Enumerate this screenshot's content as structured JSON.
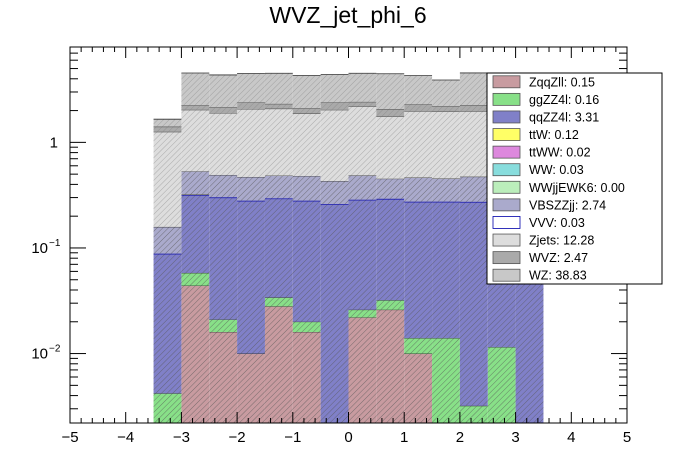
{
  "chart_data": {
    "type": "bar",
    "title": "WVZ_jet_phi_6",
    "xlabel": "",
    "ylabel": "",
    "xlim": [
      -5,
      5
    ],
    "ylim": [
      0.0022,
      8
    ],
    "log_y": true,
    "stacked": true,
    "grid": false,
    "legend_position": "top-right",
    "bin_edges": [
      -3.5,
      -3.0,
      -2.5,
      -2.0,
      -1.5,
      -1.0,
      -0.5,
      0.0,
      0.5,
      1.0,
      1.5,
      2.0,
      2.5,
      3.0,
      3.5
    ],
    "x_ticks": [
      -5,
      -4,
      -3,
      -2,
      -1,
      0,
      1,
      2,
      3,
      4,
      5
    ],
    "x_tick_labels": [
      "−5",
      "−4",
      "−3",
      "−2",
      "−1",
      "0",
      "1",
      "2",
      "3",
      "4",
      "5"
    ],
    "y_ticks": [
      0.01,
      0.1,
      1
    ],
    "y_tick_labels": [
      [
        "10",
        "−2"
      ],
      [
        "10",
        "−1"
      ],
      [
        "1",
        ""
      ]
    ],
    "series": [
      {
        "name": "ZqqZll",
        "label": "ZqqZll: 0.15",
        "color": "#c89ba0",
        "values": [
          0,
          0.044,
          0.016,
          0.01,
          0.028,
          0.016,
          0,
          0.022,
          0.026,
          0.01,
          0,
          0,
          0,
          0
        ]
      },
      {
        "name": "ggZZ4l",
        "label": "ggZZ4l: 0.16",
        "color": "#88e088",
        "values": [
          0.0042,
          0.014,
          0.005,
          0,
          0.006,
          0.004,
          0,
          0.004,
          0.006,
          0.004,
          0.014,
          0.0032,
          0.0115,
          0
        ]
      },
      {
        "name": "qqZZ4l",
        "label": "qqZZ4l: 3.31",
        "color": "#8080c8",
        "values": [
          0.084,
          0.26,
          0.28,
          0.27,
          0.26,
          0.26,
          0.26,
          0.26,
          0.26,
          0.26,
          0.26,
          0.27,
          0.26,
          0.26
        ]
      },
      {
        "name": "ttW",
        "label": "ttW: 0.12",
        "color": "#ffff66",
        "values": [
          0,
          0.003,
          0,
          0,
          0,
          0,
          0,
          0,
          0,
          0,
          0,
          0,
          0,
          0
        ]
      },
      {
        "name": "ttWW",
        "label": "ttWW: 0.02",
        "color": "#dd88dd",
        "values": [
          0,
          0,
          0,
          0,
          0,
          0,
          0,
          0,
          0,
          0,
          0,
          0,
          0,
          0
        ]
      },
      {
        "name": "WW",
        "label": "WW: 0.03",
        "color": "#88dddd",
        "values": [
          0,
          0,
          0,
          0,
          0,
          0,
          0,
          0,
          0,
          0,
          0,
          0,
          0,
          0
        ]
      },
      {
        "name": "WWjjEWK6",
        "label": "WWjjEWK6: 0.00",
        "color": "#bbeebb",
        "values": [
          0,
          0,
          0,
          0,
          0,
          0,
          0,
          0,
          0,
          0,
          0,
          0,
          0,
          0
        ]
      },
      {
        "name": "VBSZZjj",
        "label": "VBSZZjj: 2.74",
        "color": "#aaaacc",
        "values": [
          0.07,
          0.21,
          0.19,
          0.19,
          0.19,
          0.2,
          0.17,
          0.2,
          0.16,
          0.19,
          0.18,
          0.2,
          0.17,
          0.19
        ]
      },
      {
        "name": "VVV",
        "label": "VVV: 0.03",
        "color": "#ffffff",
        "values": [
          0,
          0,
          0,
          0,
          0,
          0,
          0,
          0,
          0,
          0,
          0,
          0,
          0,
          0
        ]
      },
      {
        "name": "Zjets",
        "label": "Zjets: 12.28",
        "color": "#dddddd",
        "values": [
          1.1,
          1.5,
          1.4,
          1.6,
          1.6,
          1.4,
          1.6,
          1.7,
          1.3,
          1.5,
          1.5,
          1.5,
          1.6,
          1.5
        ]
      },
      {
        "name": "WVZ",
        "label": "WVZ: 2.47",
        "color": "#aaaaaa",
        "values": [
          0.15,
          0.21,
          0.26,
          0.32,
          0.23,
          0.22,
          0.36,
          0.23,
          0.31,
          0.32,
          0.24,
          0.27,
          0.2,
          0.3
        ]
      },
      {
        "name": "WZ",
        "label": "WZ: 38.83",
        "color": "#c8c8c8",
        "values": [
          0.25,
          2.3,
          2.2,
          2.1,
          2.2,
          2.2,
          2.0,
          2.1,
          2.4,
          2.0,
          1.7,
          2.3,
          1.6,
          1.8
        ]
      }
    ]
  }
}
